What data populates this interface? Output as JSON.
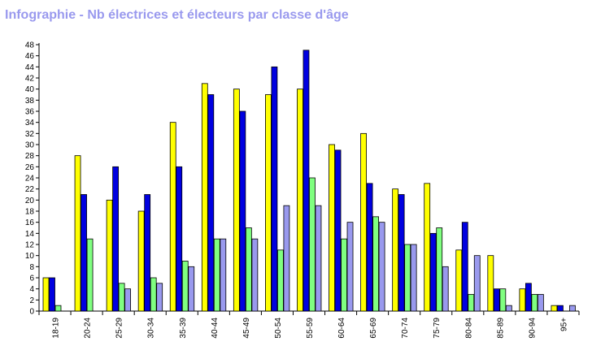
{
  "title": "Infographie - Nb électrices et électeurs par classe d'âge",
  "colors": {
    "title": "#9999ee",
    "axis": "#000000",
    "series": [
      "#ffff00",
      "#0000e0",
      "#80ff80",
      "#9999ee"
    ]
  },
  "chart_data": {
    "type": "bar",
    "title": "Infographie - Nb électrices et électeurs par classe d'âge",
    "xlabel": "",
    "ylabel": "",
    "ylim": [
      0,
      48
    ],
    "yticks": [
      0,
      2,
      4,
      6,
      8,
      10,
      12,
      14,
      16,
      18,
      20,
      22,
      24,
      26,
      28,
      30,
      32,
      34,
      36,
      38,
      40,
      42,
      44,
      46,
      48
    ],
    "grid": false,
    "legend": "none",
    "categories": [
      "18-19",
      "20-24",
      "25-29",
      "30-34",
      "35-39",
      "40-44",
      "45-49",
      "50-54",
      "55-59",
      "60-64",
      "65-69",
      "70-74",
      "75-79",
      "80-84",
      "85-89",
      "90-94",
      "95+"
    ],
    "series": [
      {
        "color": "#ffff00",
        "values": [
          6,
          28,
          20,
          18,
          34,
          41,
          40,
          39,
          40,
          30,
          32,
          22,
          23,
          11,
          10,
          4,
          1
        ]
      },
      {
        "color": "#0000e0",
        "values": [
          6,
          21,
          26,
          21,
          26,
          39,
          36,
          44,
          47,
          29,
          23,
          21,
          14,
          16,
          4,
          5,
          1
        ]
      },
      {
        "color": "#80ff80",
        "values": [
          1,
          13,
          5,
          6,
          9,
          13,
          15,
          11,
          24,
          13,
          17,
          12,
          15,
          3,
          4,
          3,
          0
        ]
      },
      {
        "color": "#9999ee",
        "values": [
          0,
          0,
          4,
          5,
          8,
          13,
          13,
          19,
          19,
          16,
          16,
          12,
          8,
          10,
          1,
          3,
          1
        ]
      }
    ]
  }
}
